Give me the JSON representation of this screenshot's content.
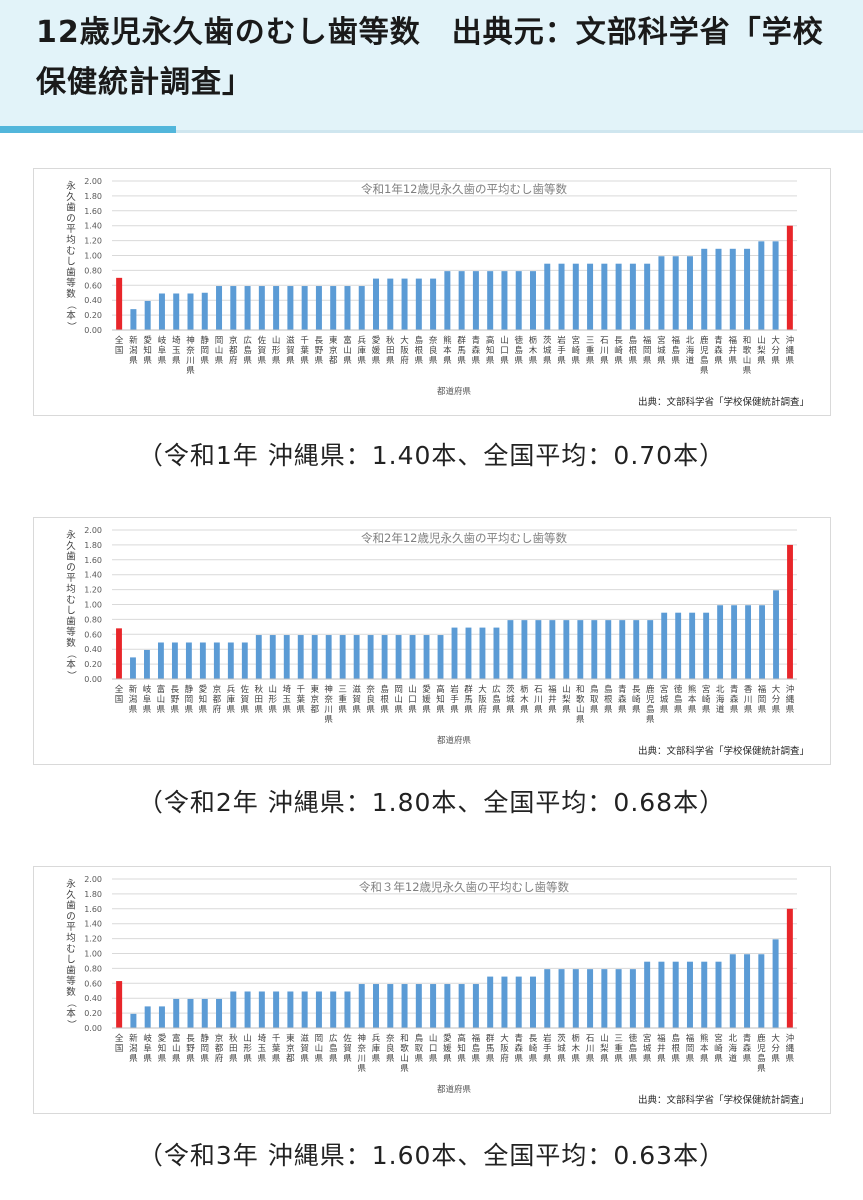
{
  "page": {
    "title": "12歳児永久歯のむし歯等数　出典元：文部科学省「学校保健統計調査」",
    "colors": {
      "header_bg": "#e2f3f9",
      "accent": "#52b6db",
      "bar": "#5b9bd5",
      "highlight": "#e8262a"
    }
  },
  "captions": [
    "（令和1年 沖縄県：1.40本、全国平均：0.70本）",
    "（令和2年 沖縄県：1.80本、全国平均：0.68本）",
    "（令和3年 沖縄県：1.60本、全国平均：0.63本）"
  ],
  "chart_data": [
    {
      "type": "bar",
      "title": "令和1年12歳児永久歯の平均むし歯等数",
      "xlabel": "都道府県",
      "ylabel": "永久歯の平均むし歯等数（本）",
      "source": "出典：文部科学省「学校保健統計調査」",
      "ylim": [
        0,
        2.0
      ],
      "yticks": [
        "0.00",
        "0.20",
        "0.40",
        "0.60",
        "0.80",
        "1.00",
        "1.20",
        "1.40",
        "1.60",
        "1.80",
        "2.00"
      ],
      "grid": true,
      "highlight": [
        "全国",
        "沖縄県"
      ],
      "categories": [
        "全国",
        "新潟県",
        "愛知県",
        "岐阜県",
        "埼玉県",
        "神奈川県",
        "静岡県",
        "岡山県",
        "京都府",
        "広島県",
        "佐賀県",
        "山形県",
        "滋賀県",
        "千葉県",
        "長野県",
        "東京都",
        "富山県",
        "兵庫県",
        "愛媛県",
        "秋田県",
        "大阪府",
        "島根県",
        "奈良県",
        "熊本県",
        "群馬県",
        "青森県",
        "高知県",
        "山口県",
        "徳島県",
        "栃木県",
        "茨城県",
        "岩手県",
        "宮崎県",
        "三重県",
        "石川県",
        "長崎県",
        "島根県",
        "福岡県",
        "宮城県",
        "福島県",
        "北海道",
        "鹿児島県",
        "青森県",
        "福井県",
        "和歌山県",
        "山梨県",
        "大分県",
        "沖縄県"
      ],
      "values": [
        0.7,
        0.28,
        0.39,
        0.49,
        0.49,
        0.49,
        0.5,
        0.59,
        0.59,
        0.59,
        0.59,
        0.59,
        0.59,
        0.59,
        0.59,
        0.59,
        0.59,
        0.59,
        0.69,
        0.69,
        0.69,
        0.69,
        0.69,
        0.79,
        0.79,
        0.79,
        0.79,
        0.79,
        0.79,
        0.79,
        0.89,
        0.89,
        0.89,
        0.89,
        0.89,
        0.89,
        0.89,
        0.89,
        0.99,
        0.99,
        0.99,
        1.09,
        1.09,
        1.09,
        1.09,
        1.19,
        1.19,
        1.4
      ]
    },
    {
      "type": "bar",
      "title": "令和2年12歳児永久歯の平均むし歯等数",
      "xlabel": "都道府県",
      "ylabel": "永久歯の平均むし歯等数（本）",
      "source": "出典：文部科学省「学校保健統計調査」",
      "ylim": [
        0,
        2.0
      ],
      "yticks": [
        "0.00",
        "0.20",
        "0.40",
        "0.60",
        "0.80",
        "1.00",
        "1.20",
        "1.40",
        "1.60",
        "1.80",
        "2.00"
      ],
      "grid": true,
      "highlight": [
        "全国",
        "沖縄県"
      ],
      "categories": [
        "全国",
        "新潟県",
        "岐阜県",
        "富山県",
        "長野県",
        "静岡県",
        "愛知県",
        "京都府",
        "兵庫県",
        "佐賀県",
        "秋田県",
        "山形県",
        "埼玉県",
        "千葉県",
        "東京都",
        "神奈川県",
        "三重県",
        "滋賀県",
        "奈良県",
        "島根県",
        "岡山県",
        "山口県",
        "愛媛県",
        "高知県",
        "岩手県",
        "群馬県",
        "大阪府",
        "広島県",
        "茨城県",
        "栃木県",
        "石川県",
        "福井県",
        "山梨県",
        "和歌山県",
        "鳥取県",
        "島根県",
        "青森県",
        "長崎県",
        "鹿児島県",
        "宮城県",
        "徳島県",
        "熊本県",
        "宮崎県",
        "北海道",
        "青森県",
        "香川県",
        "福岡県",
        "大分県",
        "沖縄県"
      ],
      "values": [
        0.68,
        0.29,
        0.39,
        0.49,
        0.49,
        0.49,
        0.49,
        0.49,
        0.49,
        0.49,
        0.59,
        0.59,
        0.59,
        0.59,
        0.59,
        0.59,
        0.59,
        0.59,
        0.59,
        0.59,
        0.59,
        0.59,
        0.59,
        0.59,
        0.69,
        0.69,
        0.69,
        0.69,
        0.79,
        0.79,
        0.79,
        0.79,
        0.79,
        0.79,
        0.79,
        0.79,
        0.79,
        0.79,
        0.79,
        0.89,
        0.89,
        0.89,
        0.89,
        0.99,
        0.99,
        0.99,
        0.99,
        1.19,
        1.8
      ]
    },
    {
      "type": "bar",
      "title": "令和３年12歳児永久歯の平均むし歯等数",
      "xlabel": "都道府県",
      "ylabel": "永久歯の平均むし歯等数（本）",
      "source": "出典：文部科学省「学校保健統計調査」",
      "ylim": [
        0,
        2.0
      ],
      "yticks": [
        "0.00",
        "0.20",
        "0.40",
        "0.60",
        "0.80",
        "1.00",
        "1.20",
        "1.40",
        "1.60",
        "1.80",
        "2.00"
      ],
      "grid": true,
      "highlight": [
        "全国",
        "沖縄県"
      ],
      "categories": [
        "全国",
        "新潟県",
        "岐阜県",
        "愛知県",
        "富山県",
        "長野県",
        "静岡県",
        "京都府",
        "秋田県",
        "山形県",
        "埼玉県",
        "千葉県",
        "東京都",
        "滋賀県",
        "岡山県",
        "広島県",
        "佐賀県",
        "神奈川県",
        "兵庫県",
        "奈良県",
        "和歌山県",
        "鳥取県",
        "山口県",
        "愛媛県",
        "高知県",
        "福島県",
        "群馬県",
        "大阪府",
        "青森県",
        "長崎県",
        "岩手県",
        "茨城県",
        "栃木県",
        "石川県",
        "山梨県",
        "三重県",
        "徳島県",
        "宮城県",
        "福井県",
        "島根県",
        "福岡県",
        "熊本県",
        "宮崎県",
        "北海道",
        "青森県",
        "鹿児島県",
        "大分県",
        "沖縄県"
      ],
      "values": [
        0.63,
        0.19,
        0.29,
        0.29,
        0.39,
        0.39,
        0.39,
        0.39,
        0.49,
        0.49,
        0.49,
        0.49,
        0.49,
        0.49,
        0.49,
        0.49,
        0.49,
        0.59,
        0.59,
        0.59,
        0.59,
        0.59,
        0.59,
        0.59,
        0.59,
        0.59,
        0.69,
        0.69,
        0.69,
        0.69,
        0.79,
        0.79,
        0.79,
        0.79,
        0.79,
        0.79,
        0.79,
        0.89,
        0.89,
        0.89,
        0.89,
        0.89,
        0.89,
        0.99,
        0.99,
        0.99,
        1.19,
        1.6
      ]
    }
  ]
}
